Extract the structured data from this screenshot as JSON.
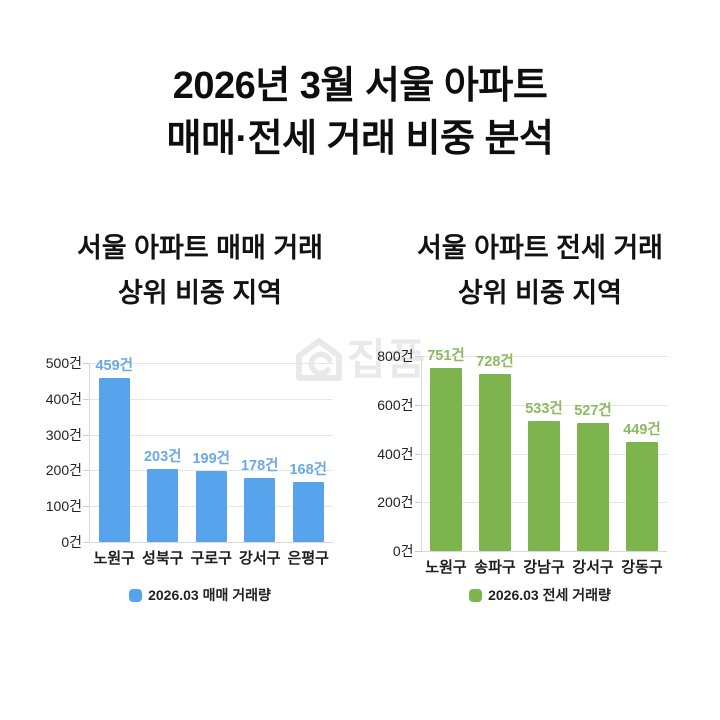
{
  "header": {
    "title_line1": "2026년 3월 서울 아파트",
    "title_line2": "매매·전세 거래 비중 분석"
  },
  "watermark": {
    "text": "집품",
    "color": "#e9e9e9",
    "icon": "house-logo-icon"
  },
  "chart_data": [
    {
      "type": "bar",
      "title": "서울 아파트 매매 거래 상위 비중 지역",
      "title_lines": [
        "서울 아파트 매매 거래",
        "상위 비중 지역"
      ],
      "categories": [
        "노원구",
        "성북구",
        "구로구",
        "강서구",
        "은평구"
      ],
      "values": [
        459,
        203,
        199,
        178,
        168
      ],
      "value_labels": [
        "459건",
        "203건",
        "199건",
        "178건",
        "168건"
      ],
      "unit": "건",
      "ylim": [
        0,
        500
      ],
      "y_ticks": [
        0,
        100,
        200,
        300,
        400,
        500
      ],
      "y_tick_labels": [
        "0건",
        "100건",
        "200건",
        "300건",
        "400건",
        "500건"
      ],
      "grid": true,
      "legend": [
        "2026.03 매매 거래량"
      ],
      "legend_position": "bottom",
      "bar_color": "#57a3ec",
      "value_label_color": "#6aa9e9"
    },
    {
      "type": "bar",
      "title": "서울 아파트 전세 거래 상위 비중 지역",
      "title_lines": [
        "서울 아파트 전세 거래",
        "상위 비중 지역"
      ],
      "categories": [
        "노원구",
        "송파구",
        "강남구",
        "강서구",
        "강동구"
      ],
      "values": [
        751,
        728,
        533,
        527,
        449
      ],
      "value_labels": [
        "751건",
        "728건",
        "533건",
        "527건",
        "449건"
      ],
      "unit": "건",
      "ylim": [
        0,
        800
      ],
      "y_ticks": [
        0,
        200,
        400,
        600,
        800
      ],
      "y_tick_labels": [
        "0건",
        "200건",
        "400건",
        "600건",
        "800건"
      ],
      "grid": true,
      "legend": [
        "2026.03 전세 거래량"
      ],
      "legend_position": "bottom",
      "bar_color": "#7db44d",
      "value_label_color": "#8cba5f"
    }
  ]
}
